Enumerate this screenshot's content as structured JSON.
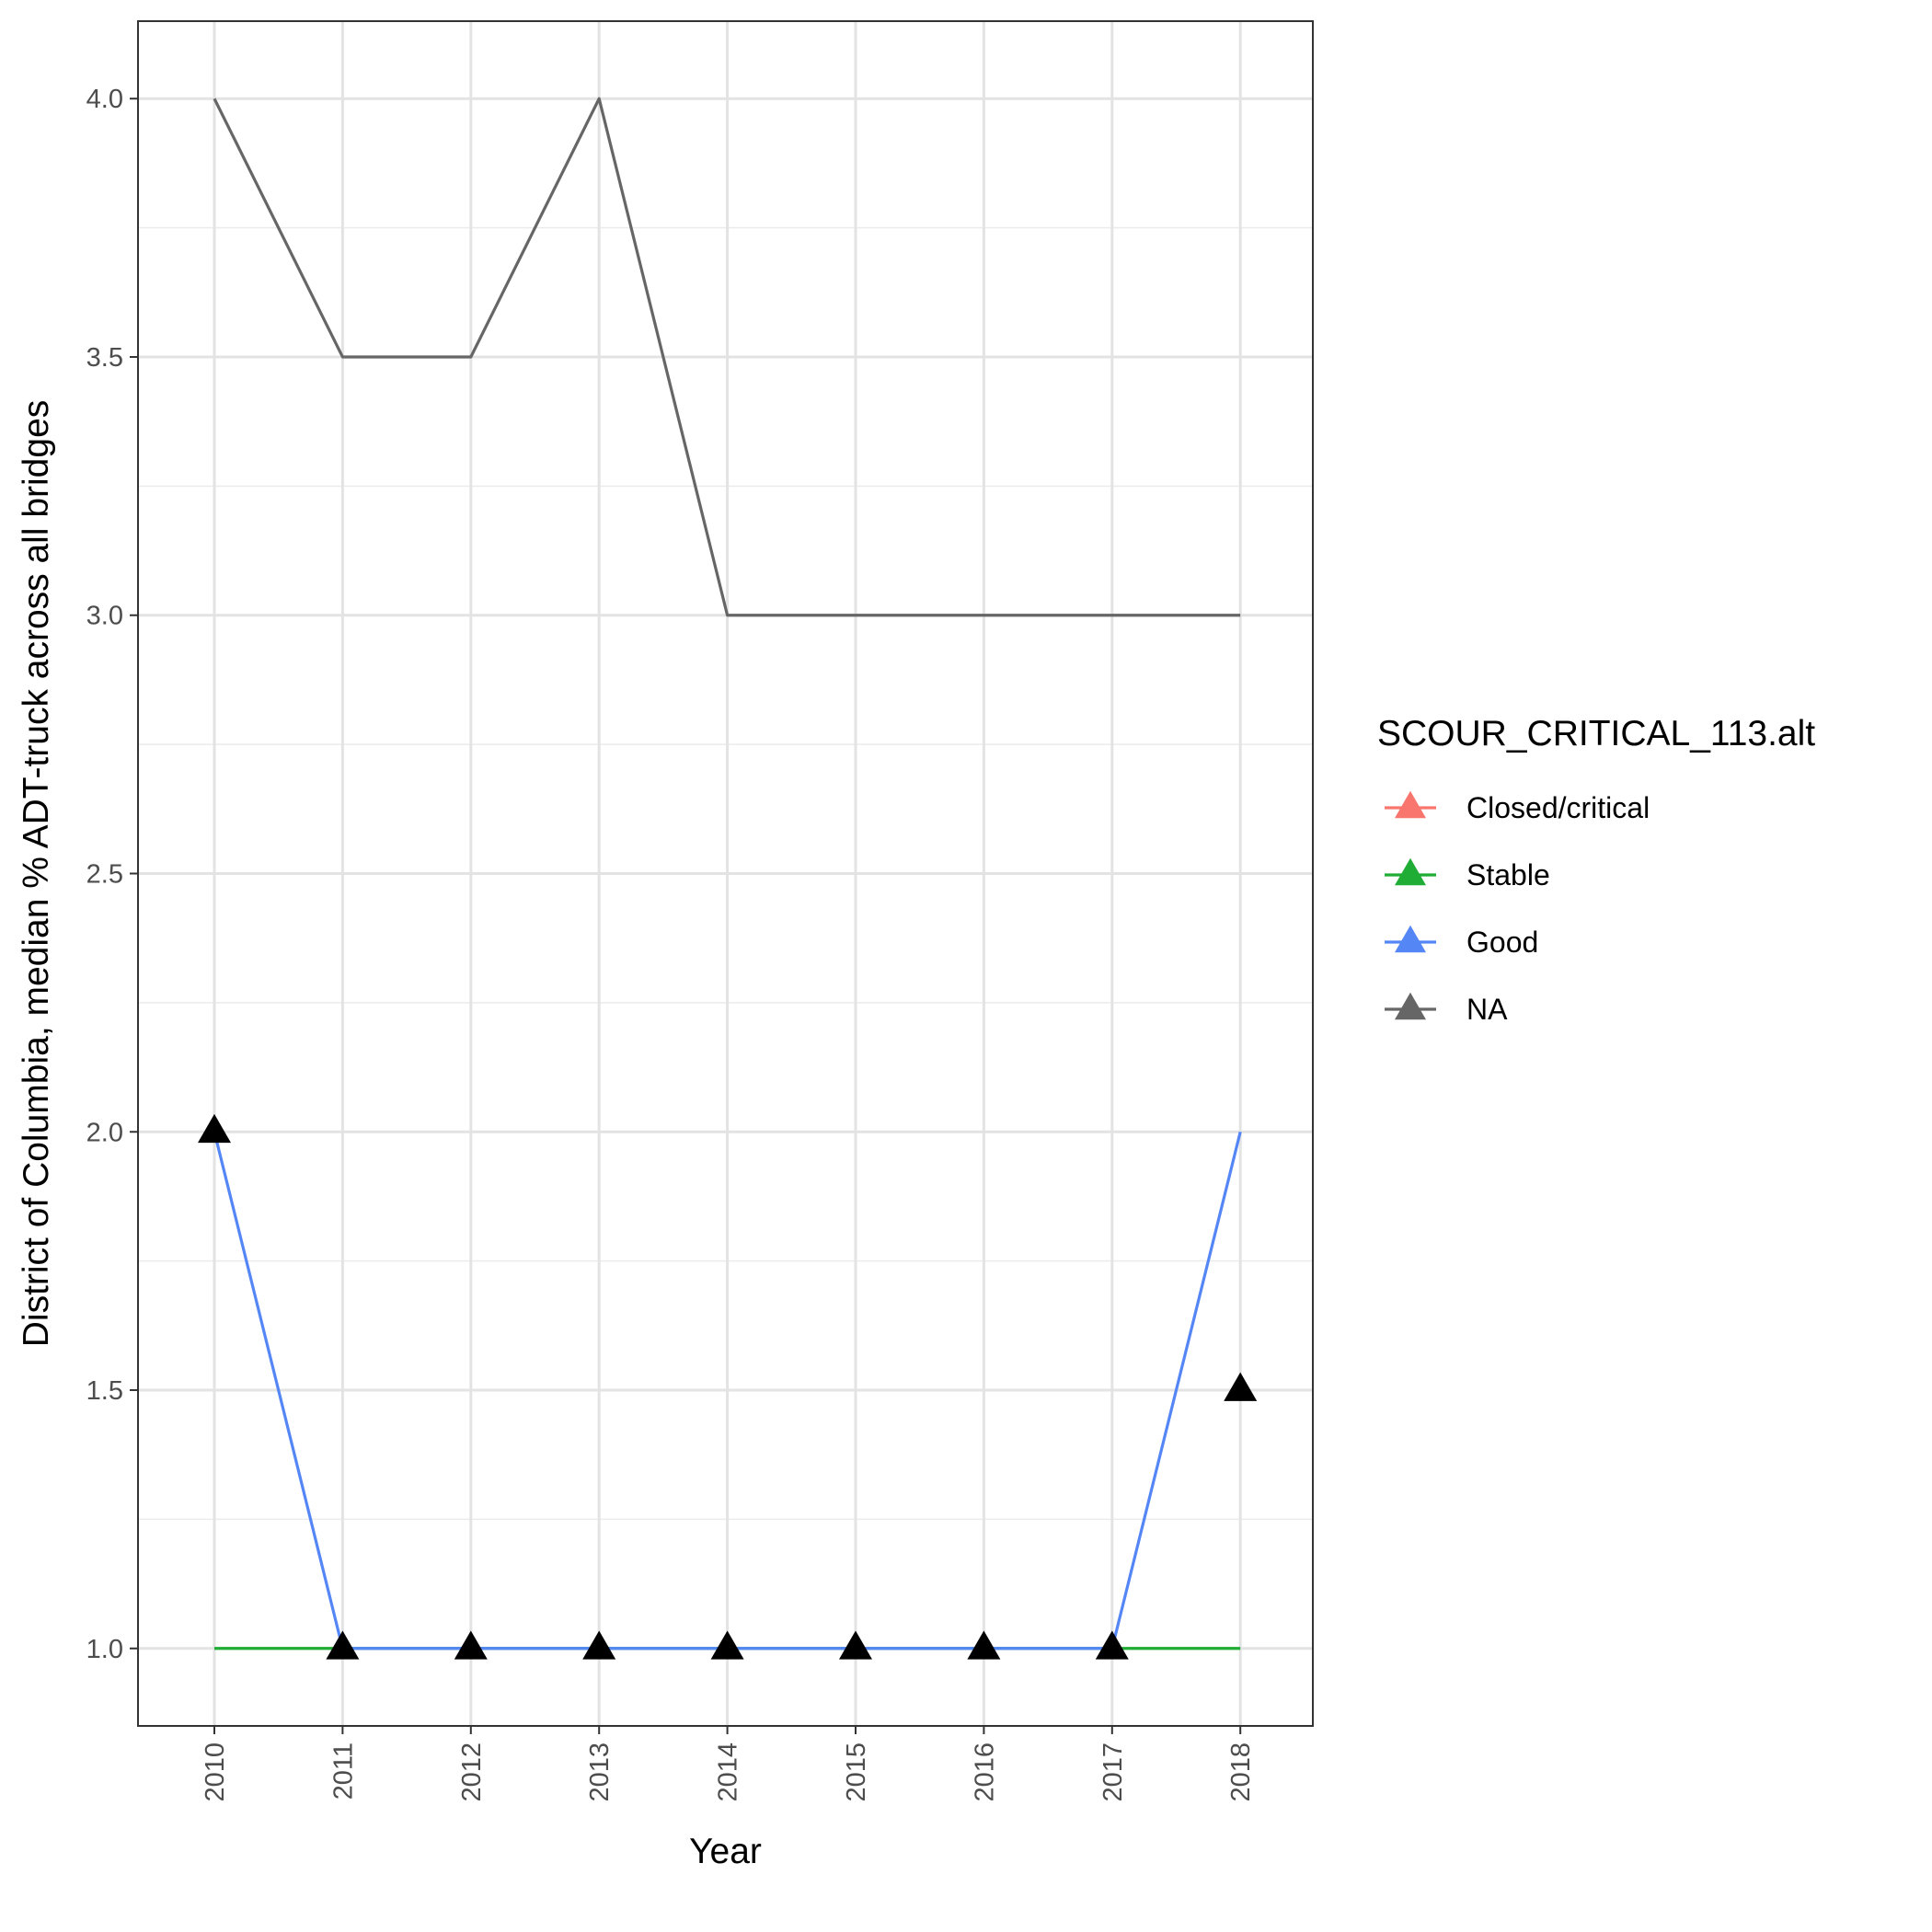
{
  "chart_data": {
    "type": "line",
    "title": "",
    "xlabel": "Year",
    "ylabel": "District of Columbia, median % ADT-truck across all bridges",
    "categories": [
      "2010",
      "2011",
      "2012",
      "2013",
      "2014",
      "2015",
      "2016",
      "2017",
      "2018"
    ],
    "ylim": [
      0.85,
      4.15
    ],
    "yticks": [
      1.0,
      1.5,
      2.0,
      2.5,
      3.0,
      3.5,
      4.0
    ],
    "ytick_labels": [
      "1.0",
      "1.5",
      "2.0",
      "2.5",
      "3.0",
      "3.5",
      "4.0"
    ],
    "grid": true,
    "legend": {
      "title": "SCOUR_CRITICAL_113.alt",
      "placement": "right"
    },
    "series": [
      {
        "name": "Closed/critical",
        "color": "#F8766D",
        "values": [
          null,
          null,
          null,
          null,
          null,
          null,
          null,
          null,
          null
        ]
      },
      {
        "name": "Stable",
        "color": "#1FAD35",
        "values": [
          1,
          1,
          1,
          1,
          1,
          1,
          1,
          1,
          1
        ]
      },
      {
        "name": "Good",
        "color": "#5586F5",
        "values": [
          2,
          1,
          1,
          1,
          1,
          1,
          1,
          1,
          2
        ]
      },
      {
        "name": "NA",
        "color": "#666666",
        "values": [
          4,
          3.5,
          3.5,
          4,
          3,
          3,
          3,
          3,
          3
        ]
      }
    ],
    "markers": {
      "shape": "triangle",
      "color": "#000000",
      "values": [
        2,
        1,
        1,
        1,
        1,
        1,
        1,
        1,
        1.5
      ]
    }
  }
}
